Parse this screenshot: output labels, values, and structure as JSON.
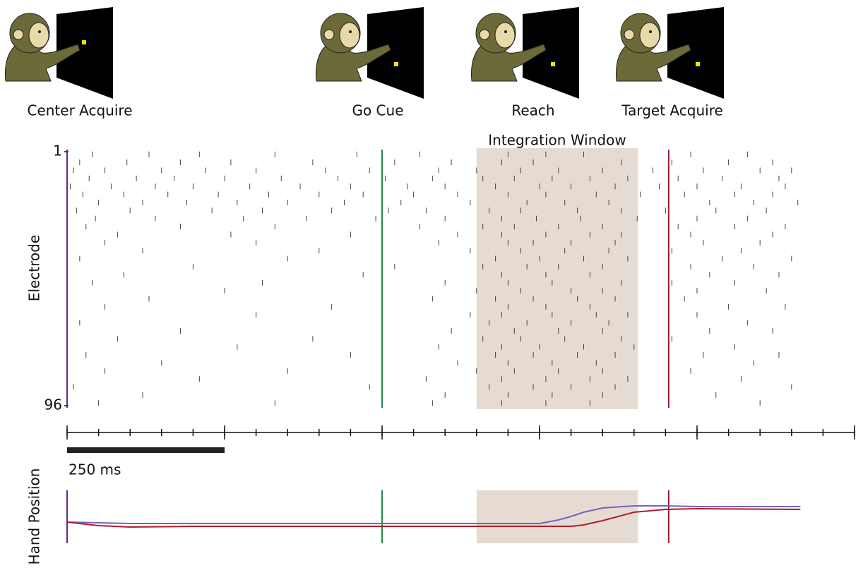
{
  "chart_data": {
    "type": "raster",
    "events": [
      {
        "label": "Center Acquire",
        "time": 0,
        "color": "#5b2c83"
      },
      {
        "label": "Go Cue",
        "time": 500,
        "color": "#1e8a4a"
      },
      {
        "label": "Reach"
      },
      {
        "label": "Target Acquire",
        "time": 955,
        "color": "#9b1b30"
      }
    ],
    "window": {
      "label": "Integration Window",
      "start": 650,
      "end": 906,
      "color": "#e6dbd2"
    },
    "ylabel": "Electrode",
    "ylim": [
      1,
      96
    ],
    "yticks": [
      1,
      96
    ],
    "xlim": [
      0,
      1250
    ],
    "xticks": [
      0,
      50,
      100,
      150,
      200,
      250,
      300,
      350,
      400,
      450,
      500,
      550,
      600,
      650,
      700,
      750,
      800,
      850,
      900,
      950,
      1000,
      1050,
      1100,
      1150,
      1200,
      1250
    ],
    "xticks_major": [
      0,
      250,
      500,
      750,
      1000,
      1250
    ],
    "scale_bar": {
      "value": 250,
      "label": "250 ms"
    },
    "raster": [
      {
        "electrode": 2,
        "times": [
          40,
          130,
          210,
          330,
          460,
          560,
          700,
          760,
          820,
          990,
          1080
        ]
      },
      {
        "electrode": 5,
        "times": [
          20,
          95,
          180,
          260,
          390,
          520,
          610,
          690,
          740,
          880,
          960,
          1050,
          1120
        ]
      },
      {
        "electrode": 8,
        "times": [
          10,
          60,
          150,
          220,
          300,
          410,
          480,
          590,
          650,
          720,
          780,
          850,
          930,
          1010,
          1100,
          1150
        ]
      },
      {
        "electrode": 11,
        "times": [
          35,
          110,
          170,
          250,
          340,
          430,
          505,
          580,
          660,
          710,
          770,
          830,
          890,
          970,
          1040,
          1130
        ]
      },
      {
        "electrode": 14,
        "times": [
          5,
          70,
          140,
          200,
          290,
          370,
          450,
          540,
          600,
          680,
          750,
          800,
          870,
          940,
          1000,
          1070,
          1140
        ]
      },
      {
        "electrode": 17,
        "times": [
          25,
          90,
          160,
          240,
          320,
          400,
          470,
          550,
          620,
          700,
          760,
          840,
          910,
          980,
          1060,
          1120
        ]
      },
      {
        "electrode": 20,
        "times": [
          50,
          120,
          190,
          270,
          350,
          440,
          530,
          640,
          730,
          790,
          860,
          1020,
          1090,
          1160
        ]
      },
      {
        "electrode": 23,
        "times": [
          15,
          100,
          230,
          310,
          420,
          510,
          570,
          670,
          720,
          810,
          880,
          950,
          1030,
          1110
        ]
      },
      {
        "electrode": 26,
        "times": [
          45,
          140,
          280,
          380,
          490,
          600,
          690,
          745,
          815,
          905,
          1000,
          1080
        ]
      },
      {
        "electrode": 29,
        "times": [
          30,
          180,
          330,
          560,
          660,
          710,
          780,
          850,
          970,
          1060,
          1140
        ]
      },
      {
        "electrode": 32,
        "times": [
          80,
          260,
          450,
          620,
          690,
          760,
          830,
          880,
          990,
          1120
        ]
      },
      {
        "electrode": 35,
        "times": [
          60,
          300,
          590,
          700,
          740,
          800,
          870,
          1010,
          1100
        ]
      },
      {
        "electrode": 38,
        "times": [
          120,
          400,
          640,
          720,
          790,
          860,
          960,
          1070
        ]
      },
      {
        "electrode": 41,
        "times": [
          20,
          350,
          680,
          750,
          820,
          890,
          1040,
          1150
        ]
      },
      {
        "electrode": 44,
        "times": [
          200,
          520,
          660,
          730,
          780,
          850,
          990,
          1090
        ]
      },
      {
        "electrode": 47,
        "times": [
          90,
          470,
          690,
          760,
          830,
          1020,
          1130
        ]
      },
      {
        "electrode": 50,
        "times": [
          40,
          310,
          600,
          700,
          770,
          880,
          960,
          1060
        ]
      },
      {
        "electrode": 53,
        "times": [
          250,
          650,
          720,
          800,
          850,
          1000,
          1110
        ]
      },
      {
        "electrode": 56,
        "times": [
          130,
          580,
          680,
          740,
          810,
          870,
          980
        ]
      },
      {
        "electrode": 59,
        "times": [
          60,
          420,
          700,
          760,
          830,
          1050,
          1140
        ]
      },
      {
        "electrode": 62,
        "times": [
          300,
          640,
          690,
          770,
          840,
          890,
          1000
        ]
      },
      {
        "electrode": 65,
        "times": [
          20,
          500,
          670,
          730,
          800,
          860,
          1080
        ]
      },
      {
        "electrode": 68,
        "times": [
          180,
          610,
          710,
          780,
          850,
          1020,
          1120
        ]
      },
      {
        "electrode": 71,
        "times": [
          80,
          390,
          660,
          720,
          790,
          880,
          960
        ]
      },
      {
        "electrode": 74,
        "times": [
          270,
          590,
          690,
          750,
          820,
          900,
          1060
        ]
      },
      {
        "electrode": 77,
        "times": [
          30,
          450,
          680,
          740,
          810,
          870,
          1010,
          1130
        ]
      },
      {
        "electrode": 80,
        "times": [
          150,
          620,
          700,
          770,
          840,
          1090
        ]
      },
      {
        "electrode": 83,
        "times": [
          60,
          350,
          650,
          710,
          780,
          850,
          990
        ]
      },
      {
        "electrode": 86,
        "times": [
          210,
          570,
          690,
          760,
          830,
          890,
          1070
        ]
      },
      {
        "electrode": 89,
        "times": [
          10,
          480,
          670,
          740,
          800,
          870,
          1150
        ]
      },
      {
        "electrode": 92,
        "times": [
          120,
          600,
          700,
          770,
          850,
          1030
        ]
      },
      {
        "electrode": 95,
        "times": [
          50,
          330,
          580,
          690,
          760,
          830,
          1100
        ]
      }
    ],
    "hand": {
      "ylabel": "Hand Position",
      "ylim": [
        -30,
        45
      ],
      "x": [
        0,
        50,
        100,
        200,
        400,
        600,
        750,
        780,
        800,
        820,
        850,
        900,
        950,
        1000,
        1164
      ],
      "series": [
        {
          "color": "#7a5fc4",
          "values": [
            0,
            -1,
            -2,
            -2,
            -2,
            -2,
            -2,
            3,
            8,
            14,
            20,
            23,
            23,
            22,
            22
          ]
        },
        {
          "color": "#b01c2a",
          "values": [
            0,
            -5,
            -7,
            -6,
            -6,
            -6,
            -6,
            -6,
            -6,
            -4,
            2,
            14,
            18,
            19,
            18
          ]
        }
      ]
    }
  }
}
